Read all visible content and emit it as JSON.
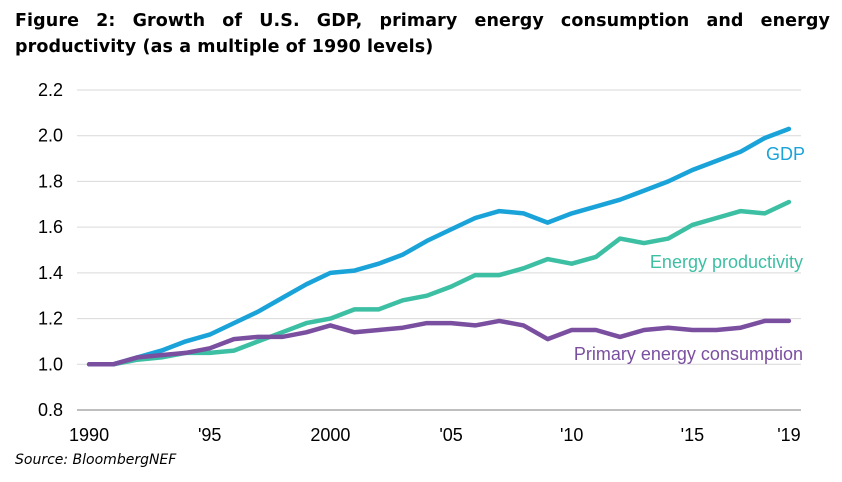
{
  "figure": {
    "title": "Figure 2: Growth of U.S. GDP, primary energy consumption and energy productivity (as a multiple of 1990 levels)",
    "source": "Source: BloombergNEF"
  },
  "chart_data": {
    "type": "line",
    "title": "Figure 2: Growth of U.S. GDP, primary energy consumption and energy productivity (as a multiple of 1990 levels)",
    "xlabel": "",
    "ylabel": "",
    "xlim": [
      1989.5,
      2019.5
    ],
    "ylim": [
      0.8,
      2.2
    ],
    "y_ticks": [
      0.8,
      1.0,
      1.2,
      1.4,
      1.6,
      1.8,
      2.0,
      2.2
    ],
    "y_tick_labels": [
      "0.8",
      "1.0",
      "1.2",
      "1.4",
      "1.6",
      "1.8",
      "2.0",
      "2.2"
    ],
    "x_ticks": [
      1990,
      1995,
      2000,
      2005,
      2010,
      2015,
      2019
    ],
    "x_tick_labels": [
      "1990",
      "'95",
      "2000",
      "'05",
      "'10",
      "'15",
      "'19"
    ],
    "grid": "horizontal",
    "legend": "inline labels",
    "x": [
      1990,
      1991,
      1992,
      1993,
      1994,
      1995,
      1996,
      1997,
      1998,
      1999,
      2000,
      2001,
      2002,
      2003,
      2004,
      2005,
      2006,
      2007,
      2008,
      2009,
      2010,
      2011,
      2012,
      2013,
      2014,
      2015,
      2016,
      2017,
      2018,
      2019
    ],
    "series": [
      {
        "name": "GDP",
        "color": "#1aa3d9",
        "values": [
          1.0,
          1.0,
          1.03,
          1.06,
          1.1,
          1.13,
          1.18,
          1.23,
          1.29,
          1.35,
          1.4,
          1.41,
          1.44,
          1.48,
          1.54,
          1.59,
          1.64,
          1.67,
          1.66,
          1.62,
          1.66,
          1.69,
          1.72,
          1.76,
          1.8,
          1.85,
          1.89,
          1.93,
          1.99,
          2.03
        ]
      },
      {
        "name": "Energy productivity",
        "color": "#3dbfa4",
        "values": [
          1.0,
          1.0,
          1.02,
          1.03,
          1.05,
          1.05,
          1.06,
          1.1,
          1.14,
          1.18,
          1.2,
          1.24,
          1.24,
          1.28,
          1.3,
          1.34,
          1.39,
          1.39,
          1.42,
          1.46,
          1.44,
          1.47,
          1.55,
          1.53,
          1.55,
          1.61,
          1.64,
          1.67,
          1.66,
          1.71
        ]
      },
      {
        "name": "Primary energy consumption",
        "color": "#7b4fa0",
        "values": [
          1.0,
          1.0,
          1.03,
          1.04,
          1.05,
          1.07,
          1.11,
          1.12,
          1.12,
          1.14,
          1.17,
          1.14,
          1.15,
          1.16,
          1.18,
          1.18,
          1.17,
          1.19,
          1.17,
          1.11,
          1.15,
          1.15,
          1.12,
          1.15,
          1.16,
          1.15,
          1.15,
          1.16,
          1.19,
          1.19
        ]
      }
    ]
  }
}
